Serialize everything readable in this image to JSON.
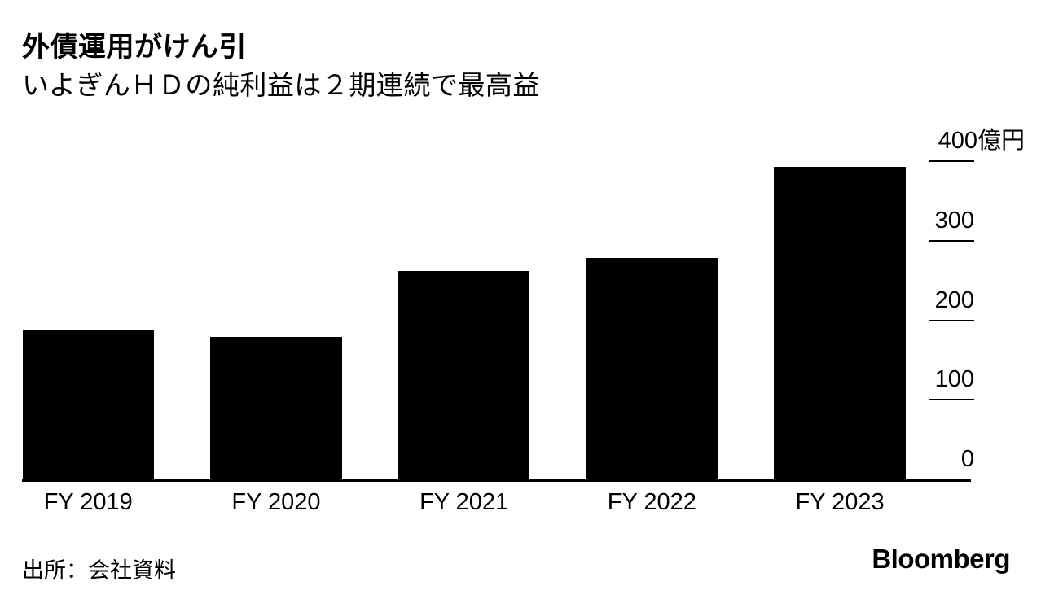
{
  "header": {
    "title": "外債運用がけん引",
    "subtitle": "いよぎんＨＤの純利益は２期連続で最高益"
  },
  "chart_data": {
    "type": "bar",
    "title": "外債運用がけん引",
    "subtitle": "いよぎんＨＤの純利益は２期連続で最高益",
    "categories": [
      "FY 2019",
      "FY 2020",
      "FY 2021",
      "FY 2022",
      "FY 2023"
    ],
    "values": [
      188,
      179,
      262,
      278,
      393
    ],
    "unit": "億円",
    "xlabel": "",
    "ylabel": "",
    "ylim": [
      0,
      400
    ],
    "yticks": [
      400,
      300,
      200,
      100,
      0
    ],
    "ytick_labels": [
      "400億円",
      "300",
      "200",
      "100",
      "0"
    ],
    "bar_color": "#000000",
    "axis_side": "right",
    "grid": false,
    "legend": "none"
  },
  "footer": {
    "source": "出所：会社資料",
    "logo": "Bloomberg"
  },
  "colors": {
    "bar": "#000000",
    "background": "#ffffff",
    "text": "#000000"
  }
}
